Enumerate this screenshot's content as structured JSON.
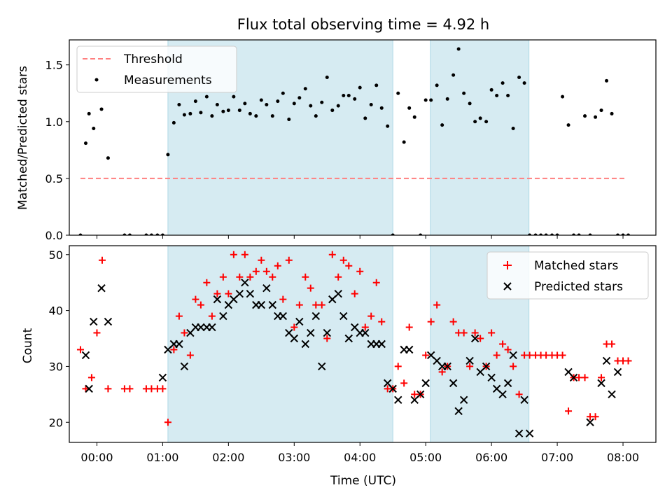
{
  "chart_data": [
    {
      "type": "scatter",
      "title": "Flux total observing time = 4.92 h",
      "xlabel": "",
      "ylabel": "Matched/Predicted stars",
      "xlim": [
        -0.42,
        8.5
      ],
      "ylim": [
        0,
        1.72
      ],
      "yticks": [
        0.0,
        0.5,
        1.0,
        1.5
      ],
      "ytick_labels": [
        "0.0",
        "0.5",
        "1.0",
        "1.5"
      ],
      "grid": false,
      "legend_position": "upper left",
      "shaded_intervals": [
        [
          1.08,
          4.5
        ],
        [
          5.07,
          6.57
        ]
      ],
      "threshold": {
        "name": "Threshold",
        "y": 0.5,
        "x_range": [
          -0.25,
          8.03
        ],
        "color": "#ff7f7f"
      },
      "series": [
        {
          "name": "Measurements",
          "color": "#000000",
          "x": [
            -0.25,
            -0.17,
            -0.12,
            -0.05,
            0.07,
            0.17,
            0.42,
            0.5,
            0.75,
            0.83,
            0.92,
            1.0,
            1.08,
            1.17,
            1.25,
            1.33,
            1.42,
            1.5,
            1.58,
            1.67,
            1.75,
            1.83,
            1.92,
            2.0,
            2.08,
            2.17,
            2.25,
            2.33,
            2.42,
            2.5,
            2.58,
            2.67,
            2.75,
            2.83,
            2.92,
            3.0,
            3.08,
            3.17,
            3.25,
            3.33,
            3.42,
            3.5,
            3.58,
            3.67,
            3.75,
            3.83,
            3.92,
            4.0,
            4.08,
            4.17,
            4.25,
            4.33,
            4.42,
            4.5,
            4.58,
            4.67,
            4.75,
            4.83,
            4.92,
            5.0,
            5.08,
            5.17,
            5.25,
            5.33,
            5.42,
            5.5,
            5.58,
            5.67,
            5.75,
            5.83,
            5.92,
            6.0,
            6.08,
            6.17,
            6.25,
            6.33,
            6.42,
            6.5,
            6.58,
            6.67,
            6.75,
            6.83,
            6.92,
            7.0,
            7.08,
            7.17,
            7.25,
            7.33,
            7.42,
            7.5,
            7.58,
            7.67,
            7.75,
            7.83,
            7.92,
            8.0,
            8.08
          ],
          "y": [
            0.0,
            0.81,
            1.07,
            0.94,
            1.11,
            0.68,
            0.0,
            0.0,
            0.0,
            0.0,
            0.0,
            0.0,
            0.71,
            0.99,
            1.15,
            1.06,
            1.07,
            1.18,
            1.08,
            1.22,
            1.05,
            1.15,
            1.09,
            1.1,
            1.22,
            1.1,
            1.16,
            1.07,
            1.05,
            1.19,
            1.15,
            1.05,
            1.18,
            1.25,
            1.02,
            1.16,
            1.21,
            1.29,
            1.14,
            1.05,
            1.17,
            1.39,
            1.1,
            1.14,
            1.23,
            1.23,
            1.2,
            1.3,
            1.03,
            1.15,
            1.32,
            1.12,
            0.96,
            0.0,
            1.25,
            0.82,
            1.12,
            1.04,
            0.0,
            1.19,
            1.19,
            1.32,
            0.97,
            1.2,
            1.41,
            1.64,
            1.25,
            1.16,
            1.0,
            1.03,
            1.0,
            1.28,
            1.23,
            1.34,
            1.23,
            0.94,
            1.39,
            1.34,
            0.0,
            0.0,
            0.0,
            0.0,
            0.0,
            0.0,
            1.22,
            0.97,
            0.0,
            0.0,
            1.05,
            0.0,
            1.04,
            1.1,
            1.36,
            1.07,
            0.0,
            0.0,
            0.0
          ]
        }
      ]
    },
    {
      "type": "scatter",
      "title": "",
      "xlabel": "Time (UTC)",
      "ylabel": "Count",
      "xlim": [
        -0.42,
        8.5
      ],
      "ylim": [
        16.4,
        51.6
      ],
      "yticks": [
        20,
        30,
        40,
        50
      ],
      "ytick_labels": [
        "20",
        "30",
        "40",
        "50"
      ],
      "xticks": [
        0,
        1,
        2,
        3,
        4,
        5,
        6,
        7,
        8
      ],
      "xtick_labels": [
        "00:00",
        "01:00",
        "02:00",
        "03:00",
        "04:00",
        "05:00",
        "06:00",
        "07:00",
        "08:00"
      ],
      "grid": false,
      "legend_position": "upper right",
      "shaded_intervals": [
        [
          1.08,
          4.5
        ],
        [
          5.07,
          6.57
        ]
      ],
      "series": [
        {
          "name": "Matched stars",
          "color": "#ff0000",
          "marker": "plus",
          "x": [
            -0.25,
            -0.17,
            -0.08,
            0.0,
            0.08,
            0.17,
            0.42,
            0.5,
            0.75,
            0.83,
            0.92,
            1.0,
            1.08,
            1.17,
            1.25,
            1.33,
            1.42,
            1.5,
            1.58,
            1.67,
            1.75,
            1.83,
            1.92,
            2.0,
            2.08,
            2.17,
            2.25,
            2.33,
            2.42,
            2.5,
            2.58,
            2.67,
            2.75,
            2.83,
            2.92,
            3.0,
            3.08,
            3.17,
            3.25,
            3.33,
            3.42,
            3.5,
            3.58,
            3.67,
            3.75,
            3.83,
            3.92,
            4.0,
            4.08,
            4.17,
            4.25,
            4.33,
            4.42,
            4.5,
            4.58,
            4.67,
            4.75,
            4.83,
            4.92,
            5.0,
            5.08,
            5.17,
            5.25,
            5.33,
            5.42,
            5.5,
            5.58,
            5.67,
            5.75,
            5.83,
            5.92,
            6.0,
            6.08,
            6.17,
            6.25,
            6.33,
            6.42,
            6.5,
            6.58,
            6.67,
            6.75,
            6.83,
            6.92,
            7.0,
            7.08,
            7.17,
            7.25,
            7.33,
            7.42,
            7.5,
            7.58,
            7.67,
            7.75,
            7.83,
            7.92,
            8.0,
            8.08
          ],
          "y": [
            33,
            26,
            28,
            36,
            49,
            26,
            26,
            26,
            26,
            26,
            26,
            26,
            20,
            33,
            39,
            36,
            32,
            42,
            41,
            45,
            39,
            43,
            46,
            43,
            50,
            46,
            50,
            46,
            47,
            49,
            47,
            46,
            48,
            42,
            49,
            37,
            41,
            46,
            44,
            41,
            41,
            35,
            50,
            46,
            49,
            48,
            43,
            47,
            37,
            39,
            45,
            38,
            26,
            26,
            30,
            27,
            37,
            25,
            25,
            32,
            38,
            41,
            29,
            30,
            38,
            36,
            36,
            30,
            36,
            35,
            30,
            36,
            32,
            34,
            33,
            30,
            25,
            32,
            32,
            32,
            32,
            32,
            32,
            32,
            32,
            22,
            28,
            28,
            28,
            21,
            21,
            28,
            34,
            34,
            31,
            31,
            31
          ]
        },
        {
          "name": "Predicted stars",
          "color": "#000000",
          "marker": "x",
          "x": [
            -0.17,
            -0.12,
            -0.05,
            0.07,
            0.17,
            1.0,
            1.08,
            1.17,
            1.25,
            1.33,
            1.42,
            1.5,
            1.58,
            1.67,
            1.75,
            1.83,
            1.92,
            2.0,
            2.08,
            2.17,
            2.25,
            2.33,
            2.42,
            2.5,
            2.58,
            2.67,
            2.75,
            2.83,
            2.92,
            3.0,
            3.08,
            3.17,
            3.25,
            3.33,
            3.42,
            3.5,
            3.58,
            3.67,
            3.75,
            3.83,
            3.92,
            4.0,
            4.08,
            4.17,
            4.25,
            4.33,
            4.42,
            4.5,
            4.58,
            4.67,
            4.75,
            4.83,
            4.92,
            5.0,
            5.08,
            5.17,
            5.25,
            5.33,
            5.42,
            5.5,
            5.58,
            5.67,
            5.75,
            5.83,
            5.92,
            6.0,
            6.08,
            6.17,
            6.25,
            6.33,
            6.42,
            6.5,
            6.58,
            7.17,
            7.25,
            7.5,
            7.67,
            7.75,
            7.83,
            7.92
          ],
          "y": [
            32,
            26,
            38,
            44,
            38,
            28,
            33,
            34,
            34,
            30,
            36,
            37,
            37,
            37,
            37,
            42,
            39,
            41,
            42,
            43,
            45,
            43,
            41,
            41,
            44,
            41,
            39,
            39,
            36,
            35,
            38,
            34,
            36,
            39,
            30,
            36,
            42,
            43,
            39,
            35,
            37,
            36,
            36,
            34,
            34,
            34,
            27,
            26,
            24,
            33,
            33,
            24,
            25,
            27,
            32,
            31,
            30,
            30,
            27,
            22,
            24,
            31,
            35,
            29,
            30,
            28,
            26,
            25,
            27,
            32,
            18,
            24,
            18,
            29,
            28,
            20,
            27,
            31,
            25,
            29
          ]
        }
      ]
    }
  ]
}
